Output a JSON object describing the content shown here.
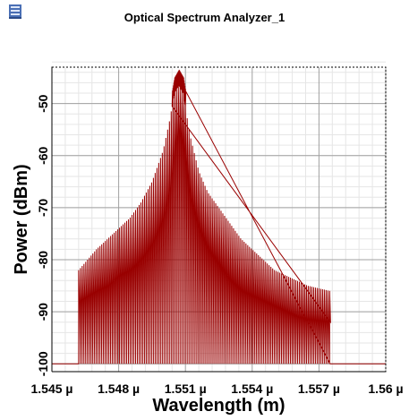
{
  "window": {
    "title": "Optical Spectrum Analyzer_1",
    "icon": "osa-app-icon"
  },
  "chart_data": {
    "type": "line",
    "title": "",
    "xlabel": "Wavelength (m)",
    "ylabel": "Power (dBm)",
    "xlim": [
      1.545e-06,
      1.56e-06
    ],
    "ylim": [
      -101.5,
      -43
    ],
    "xticks": [
      {
        "value": 1.545e-06,
        "label": "1.545 µ"
      },
      {
        "value": 1.548e-06,
        "label": "1.548 µ"
      },
      {
        "value": 1.551e-06,
        "label": "1.551 µ"
      },
      {
        "value": 1.554e-06,
        "label": "1.554 µ"
      },
      {
        "value": 1.557e-06,
        "label": "1.557 µ"
      },
      {
        "value": 1.56e-06,
        "label": "1.56 µ"
      }
    ],
    "yticks": [
      {
        "value": -50,
        "label": "-50"
      },
      {
        "value": -60,
        "label": "-60"
      },
      {
        "value": -70,
        "label": "-70"
      },
      {
        "value": -80,
        "label": "-80"
      },
      {
        "value": -90,
        "label": "-90"
      },
      {
        "value": -100,
        "label": "-100"
      }
    ],
    "grid": true,
    "noise_floor_dbm": -100,
    "series": [
      {
        "color": "#990000",
        "envelope_top": [
          [
            1.5462e-06,
            -82
          ],
          [
            1.5466e-06,
            -80
          ],
          [
            1.547e-06,
            -78
          ],
          [
            1.5475e-06,
            -76
          ],
          [
            1.548e-06,
            -74
          ],
          [
            1.5485e-06,
            -72
          ],
          [
            1.549e-06,
            -69
          ],
          [
            1.5495e-06,
            -65
          ],
          [
            1.55e-06,
            -59
          ],
          [
            1.5503e-06,
            -53
          ],
          [
            1.5505e-06,
            -48
          ],
          [
            1.5507e-06,
            -46.5
          ],
          [
            1.5509e-06,
            -48
          ],
          [
            1.5512e-06,
            -56
          ],
          [
            1.5516e-06,
            -63
          ],
          [
            1.552e-06,
            -67
          ],
          [
            1.5525e-06,
            -70
          ],
          [
            1.553e-06,
            -73
          ],
          [
            1.5535e-06,
            -76
          ],
          [
            1.554e-06,
            -78
          ],
          [
            1.5545e-06,
            -80
          ],
          [
            1.555e-06,
            -82
          ],
          [
            1.5555e-06,
            -83
          ],
          [
            1.556e-06,
            -84
          ],
          [
            1.5565e-06,
            -85
          ],
          [
            1.5575e-06,
            -86
          ]
        ],
        "envelope_bottom": [
          [
            1.5462e-06,
            -88
          ],
          [
            1.5466e-06,
            -87
          ],
          [
            1.547e-06,
            -86
          ],
          [
            1.5475e-06,
            -85
          ],
          [
            1.548e-06,
            -83
          ],
          [
            1.5485e-06,
            -82
          ],
          [
            1.549e-06,
            -80
          ],
          [
            1.5495e-06,
            -77
          ],
          [
            1.55e-06,
            -72
          ],
          [
            1.5503e-06,
            -66
          ],
          [
            1.5505e-06,
            -58
          ],
          [
            1.5507e-06,
            -55
          ],
          [
            1.5509e-06,
            -58
          ],
          [
            1.5512e-06,
            -68
          ],
          [
            1.5516e-06,
            -74
          ],
          [
            1.552e-06,
            -78
          ],
          [
            1.5525e-06,
            -81
          ],
          [
            1.553e-06,
            -84
          ],
          [
            1.5535e-06,
            -86
          ],
          [
            1.554e-06,
            -87
          ],
          [
            1.5545e-06,
            -88
          ],
          [
            1.555e-06,
            -89
          ],
          [
            1.5555e-06,
            -90
          ],
          [
            1.556e-06,
            -91
          ],
          [
            1.5565e-06,
            -91.5
          ],
          [
            1.5575e-06,
            -92
          ]
        ],
        "comb_start": 1.5462e-06,
        "comb_end": 1.5575e-06,
        "comb_spacing": 8e-11
      }
    ]
  }
}
